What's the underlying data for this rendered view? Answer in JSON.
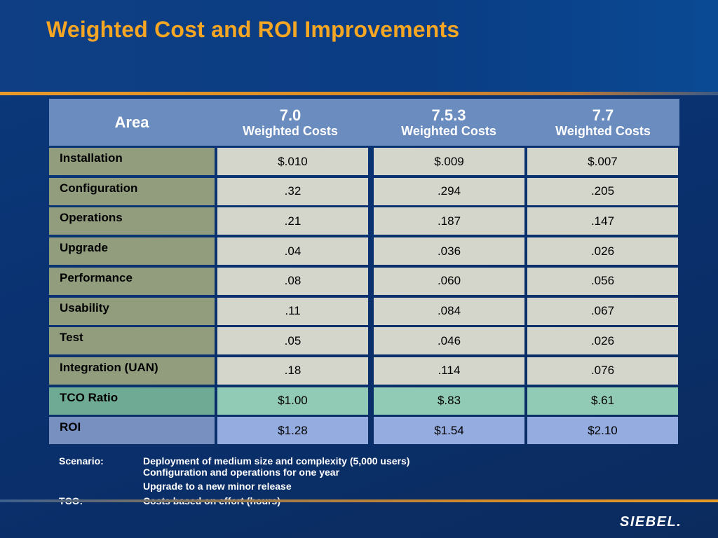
{
  "title": "Weighted Cost and ROI Improvements",
  "chart_data": {
    "type": "table",
    "columns": [
      {
        "header": "Area",
        "version": "",
        "subtitle": ""
      },
      {
        "header": "7.0",
        "version": "7.0",
        "subtitle": "Weighted Costs"
      },
      {
        "header": "7.5.3",
        "version": "7.5.3",
        "subtitle": "Weighted Costs"
      },
      {
        "header": "7.7",
        "version": "7.7",
        "subtitle": "Weighted Costs"
      }
    ],
    "area_header": "Area",
    "rows": [
      {
        "area": "Installation",
        "values": [
          "$.010",
          "$.009",
          "$.007"
        ],
        "kind": "normal"
      },
      {
        "area": "Configuration",
        "values": [
          ".32",
          ".294",
          ".205"
        ],
        "kind": "normal"
      },
      {
        "area": "Operations",
        "values": [
          ".21",
          ".187",
          ".147"
        ],
        "kind": "normal"
      },
      {
        "area": "Upgrade",
        "values": [
          ".04",
          ".036",
          ".026"
        ],
        "kind": "normal"
      },
      {
        "area": "Performance",
        "values": [
          ".08",
          ".060",
          ".056"
        ],
        "kind": "normal"
      },
      {
        "area": "Usability",
        "values": [
          ".11",
          ".084",
          ".067"
        ],
        "kind": "normal"
      },
      {
        "area": "Test",
        "values": [
          ".05",
          ".046",
          ".026"
        ],
        "kind": "normal"
      },
      {
        "area": "Integration (UAN)",
        "values": [
          ".18",
          ".114",
          ".076"
        ],
        "kind": "normal"
      },
      {
        "area": "TCO Ratio",
        "values": [
          "$1.00",
          "$.83",
          "$.61"
        ],
        "kind": "tco"
      },
      {
        "area": "ROI",
        "values": [
          "$1.28",
          "$1.54",
          "$2.10"
        ],
        "kind": "roi"
      }
    ]
  },
  "notes": {
    "scenario_label": "Scenario:",
    "scenario_lines": [
      "Deployment of medium size and complexity (5,000 users)",
      "Configuration and operations for one year",
      "Upgrade to a new minor release"
    ],
    "tco_label": "TCO:",
    "tco_text": "Costs based on effort (hours)"
  },
  "logo": {
    "text": "SIEBEL."
  },
  "colors": {
    "title": "#f5a623",
    "header": "#6b8cbf",
    "area_cell": "#929d7e",
    "value_cell": "#d4d6cc",
    "tco_value": "#92cbb5",
    "roi_value": "#94ace0"
  }
}
